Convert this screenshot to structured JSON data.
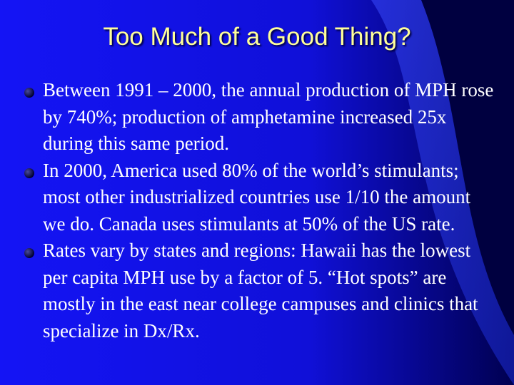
{
  "title": "Too Much of a Good Thing?",
  "bullets": [
    "Between 1991 – 2000, the annual production of MPH rose by 740%; production of amphetamine increased 25x during this same period.",
    "In 2000, America used 80% of the world’s stimulants; most other industrialized countries use 1/10 the amount we do.  Canada uses stimulants at 50% of the US rate.",
    "Rates vary by states and regions:  Hawaii has the lowest per capita MPH use by a factor of 5.  “Hot spots” are mostly in the east near college campuses and clinics that specialize in Dx/Rx."
  ]
}
